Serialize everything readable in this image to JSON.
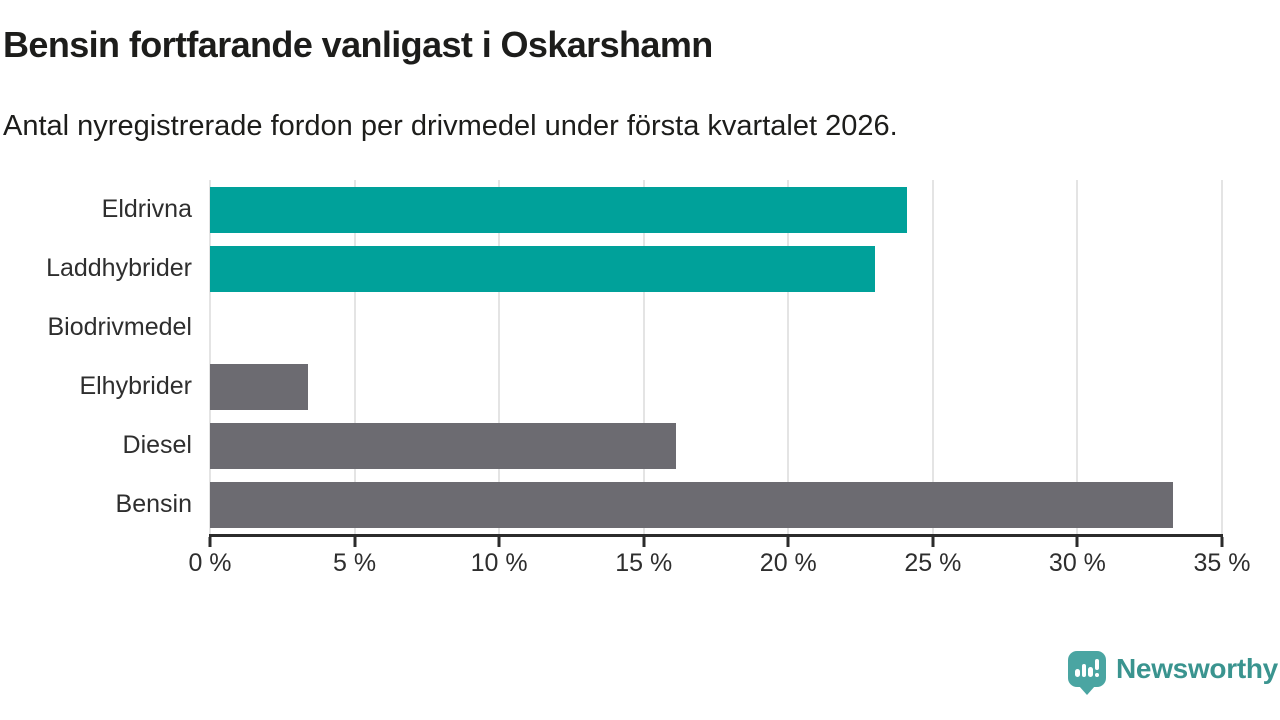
{
  "header": {
    "title": "Bensin fortfarande vanligast i Oskarshamn",
    "subtitle": "Antal nyregistrerade fordon per drivmedel under första kvartalet 2026."
  },
  "chart_data": {
    "type": "bar",
    "orientation": "horizontal",
    "title": "Bensin fortfarande vanligast i Oskarshamn",
    "subtitle": "Antal nyregistrerade fordon per drivmedel under första kvartalet 2026.",
    "categories": [
      "Eldrivna",
      "Laddhybrider",
      "Biodrivmedel",
      "Elhybrider",
      "Diesel",
      "Bensin"
    ],
    "values": [
      24.1,
      23.0,
      0,
      3.4,
      16.1,
      33.3
    ],
    "value_unit": "%",
    "bar_colors": [
      "#00a19a",
      "#00a19a",
      "#6c6b71",
      "#6c6b71",
      "#6c6b71",
      "#6c6b71"
    ],
    "xlim": [
      0,
      35
    ],
    "x_ticks": [
      {
        "value": 0,
        "label": "0 %"
      },
      {
        "value": 5,
        "label": "5 %"
      },
      {
        "value": 10,
        "label": "10 %"
      },
      {
        "value": 15,
        "label": "15 %"
      },
      {
        "value": 20,
        "label": "20 %"
      },
      {
        "value": 25,
        "label": "25 %"
      },
      {
        "value": 30,
        "label": "30 %"
      },
      {
        "value": 35,
        "label": "35 %"
      }
    ],
    "grid": "vertical gridlines at each x tick",
    "legend": "none"
  },
  "branding": {
    "label": "Newsworthy"
  },
  "colors": {
    "highlight_teal": "#00a19a",
    "bar_gray": "#6c6b71",
    "gridline": "#e4e4e4",
    "axis_line": "#2b2b2b",
    "text_dark": "#1d1d1b",
    "axis_text": "#2e2e2e",
    "logo_icon_teal": "#4aa5a2",
    "logo_text_teal": "#3a948f"
  }
}
